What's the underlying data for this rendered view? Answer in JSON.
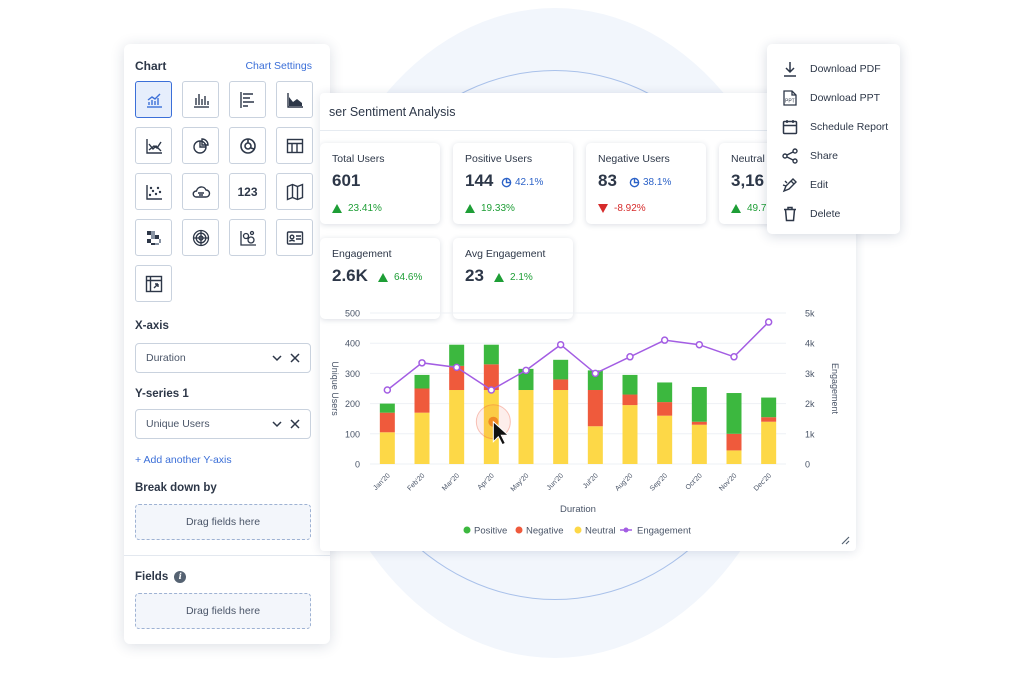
{
  "panel": {
    "title": "Chart",
    "settings_link": "Chart Settings",
    "xaxis_label": "X-axis",
    "xaxis_value": "Duration",
    "yseries_label": "Y-series 1",
    "yseries_value": "Unique Users",
    "add_axis": "+ Add another Y-axis",
    "breakdown_label": "Break down by",
    "breakdown_drop": "Drag fields here",
    "fields_label": "Fields",
    "fields_drop": "Drag fields here",
    "chart_types": [
      "line-bar-icon",
      "bar-chart-icon",
      "horizontal-bar-icon",
      "area-chart-icon",
      "trend-line-icon",
      "pie-chart-icon",
      "donut-chart-icon",
      "table-icon",
      "scatter-icon",
      "cloud-icon",
      "number-icon",
      "map-icon",
      "heatmap-icon",
      "radar-icon",
      "bubble-icon",
      "card-icon",
      "pivot-icon"
    ],
    "number_text": "123"
  },
  "card": {
    "title": "ser Sentiment Analysis",
    "kpis": [
      {
        "label": "Total Users",
        "value": "601",
        "delta": "23.41%",
        "dir": "up"
      },
      {
        "label": "Positive Users",
        "value": "144",
        "pct": "42.1%",
        "delta": "19.33%",
        "dir": "up"
      },
      {
        "label": "Negative Users",
        "value": "83",
        "pct": "38.1%",
        "delta": "-8.92%",
        "dir": "down"
      },
      {
        "label": "Neutral",
        "value": "3,16",
        "delta": "49.7",
        "dir": "up"
      },
      {
        "label": "Engagement",
        "value": "2.6K",
        "delta": "64.6%",
        "dir": "up"
      },
      {
        "label": "Avg Engagement",
        "value": "23",
        "delta": "2.1%",
        "dir": "up"
      }
    ]
  },
  "menu": {
    "items": [
      {
        "label": "Download PDF",
        "icon": "download-icon"
      },
      {
        "label": "Download PPT",
        "icon": "ppt-icon"
      },
      {
        "label": "Schedule Report",
        "icon": "calendar-icon"
      },
      {
        "label": "Share",
        "icon": "share-icon"
      },
      {
        "label": "Edit",
        "icon": "edit-icon"
      },
      {
        "label": "Delete",
        "icon": "trash-icon"
      }
    ]
  },
  "colors": {
    "positive": "#3cb83f",
    "negative": "#ef5a3c",
    "neutral": "#fdd847",
    "engagement": "#a35de3",
    "accent": "#3b6fd8"
  },
  "chart_data": {
    "type": "bar",
    "stacked": true,
    "categories": [
      "Jan'20",
      "Feb'20",
      "Mar'20",
      "Apr'20",
      "May'20",
      "Jun'20",
      "Jul'20",
      "Aug'20",
      "Sep'20",
      "Oct'20",
      "Nov'20",
      "Dec'20"
    ],
    "series": [
      {
        "name": "Neutral",
        "values": [
          105,
          170,
          245,
          245,
          245,
          245,
          125,
          195,
          160,
          130,
          45,
          140
        ]
      },
      {
        "name": "Negative",
        "values": [
          65,
          80,
          80,
          85,
          0,
          35,
          120,
          35,
          45,
          10,
          55,
          15
        ]
      },
      {
        "name": "Positive",
        "values": [
          30,
          45,
          70,
          65,
          70,
          65,
          65,
          65,
          65,
          115,
          135,
          65
        ]
      }
    ],
    "line_series": {
      "name": "Engagement",
      "values": [
        2.45,
        3.35,
        3.2,
        2.45,
        3.1,
        3.95,
        3.0,
        3.55,
        4.1,
        3.95,
        3.55,
        4.7
      ]
    },
    "xlabel": "Duration",
    "ylabel": "Unique Users",
    "y2label": "Engagement",
    "ylim": [
      0,
      500
    ],
    "y2lim": [
      0,
      5
    ],
    "yticks": [
      "0",
      "100",
      "200",
      "300",
      "400",
      "500"
    ],
    "y2ticks": [
      "0",
      "1k",
      "2k",
      "3k",
      "4k",
      "5k"
    ],
    "legend": [
      "Positive",
      "Negative",
      "Neutral",
      "Engagement"
    ],
    "legend_position": "bottom",
    "grid": true
  }
}
